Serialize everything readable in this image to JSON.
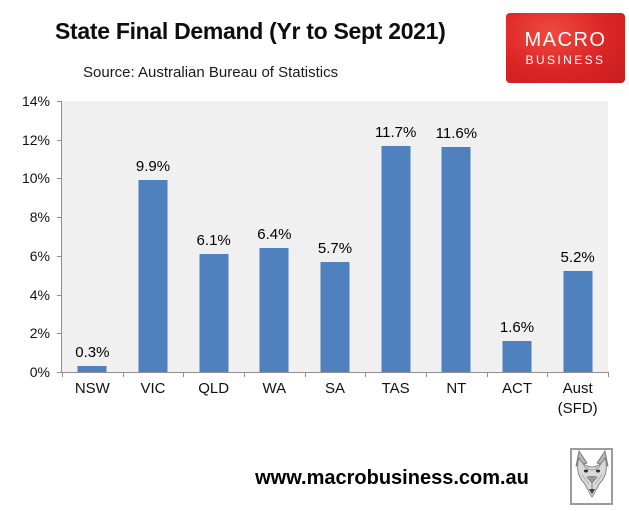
{
  "header": {
    "title": "State Final Demand (Yr to Sept 2021)",
    "source": "Source: Australian Bureau of Statistics"
  },
  "logo": {
    "line1": "MACRO",
    "line2": "BUSINESS",
    "bg_color": "#dc2424",
    "text_color": "#ffffff"
  },
  "footer": {
    "website": "www.macrobusiness.com.au",
    "icon": "wolf-head-icon"
  },
  "chart_data": {
    "type": "bar",
    "title": "State Final Demand (Yr to Sept 2021)",
    "categories": [
      "NSW",
      "VIC",
      "QLD",
      "WA",
      "SA",
      "TAS",
      "NT",
      "ACT",
      "Aust (SFD)"
    ],
    "values": [
      0.3,
      9.9,
      6.1,
      6.4,
      5.7,
      11.7,
      11.6,
      1.6,
      5.2
    ],
    "data_labels": [
      "0.3%",
      "9.9%",
      "6.1%",
      "6.4%",
      "5.7%",
      "11.7%",
      "11.6%",
      "1.6%",
      "5.2%"
    ],
    "xlabel": "",
    "ylabel": "",
    "ylim": [
      0,
      14
    ],
    "y_tick_values": [
      0,
      2,
      4,
      6,
      8,
      10,
      12,
      14
    ],
    "y_tick_labels": [
      "0%",
      "2%",
      "4%",
      "6%",
      "8%",
      "10%",
      "12%",
      "14%"
    ],
    "grid": false,
    "legend": "none",
    "bar_color": "#4e81bd",
    "plot_bg_color": "#f0f0f1",
    "axis_color": "#8e8e8e"
  }
}
